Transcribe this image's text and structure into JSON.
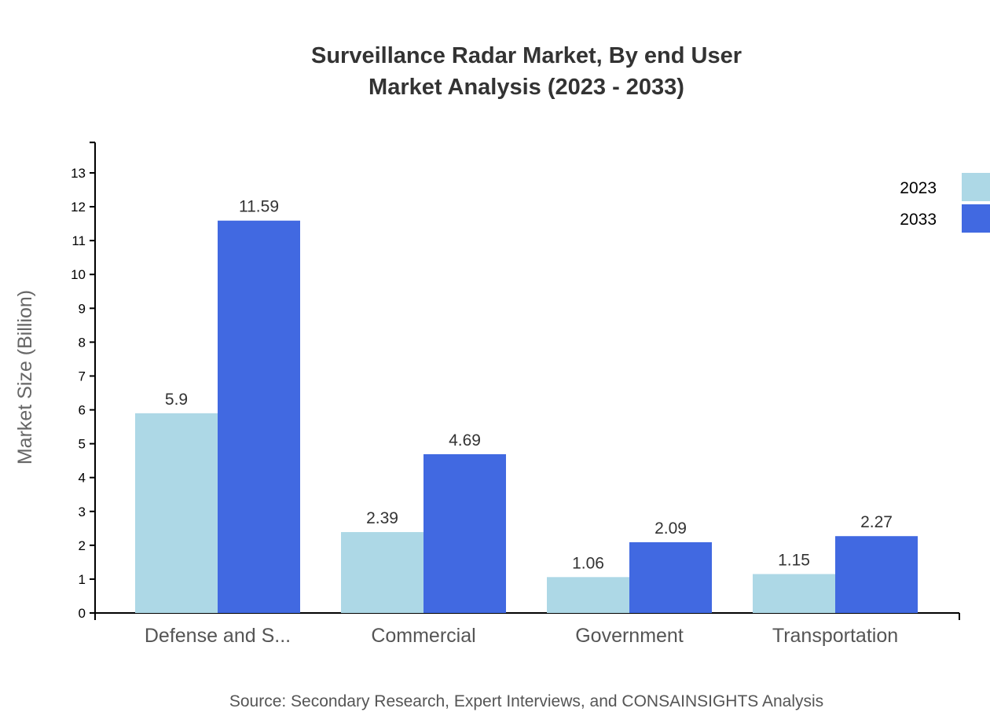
{
  "chart_data": {
    "type": "bar",
    "title": "Surveillance Radar Market, By end User",
    "subtitle": "Market Analysis (2023 - 2033)",
    "xlabel": "",
    "ylabel": "Market Size (Billion)",
    "ylim": [
      0,
      13.9
    ],
    "yticks": [
      0,
      1,
      2,
      3,
      4,
      5,
      6,
      7,
      8,
      9,
      10,
      11,
      12,
      13
    ],
    "categories": [
      "Defense and S...",
      "Commercial",
      "Government",
      "Transportation"
    ],
    "series": [
      {
        "name": "2023",
        "color": "#add8e6",
        "values": [
          5.9,
          2.39,
          1.06,
          1.15
        ]
      },
      {
        "name": "2033",
        "color": "#4169e1",
        "values": [
          11.59,
          4.69,
          2.09,
          2.27
        ]
      }
    ],
    "legend_position": "top-right",
    "grid": false,
    "source": "Source: Secondary Research, Expert Interviews, and CONSAINSIGHTS Analysis"
  }
}
